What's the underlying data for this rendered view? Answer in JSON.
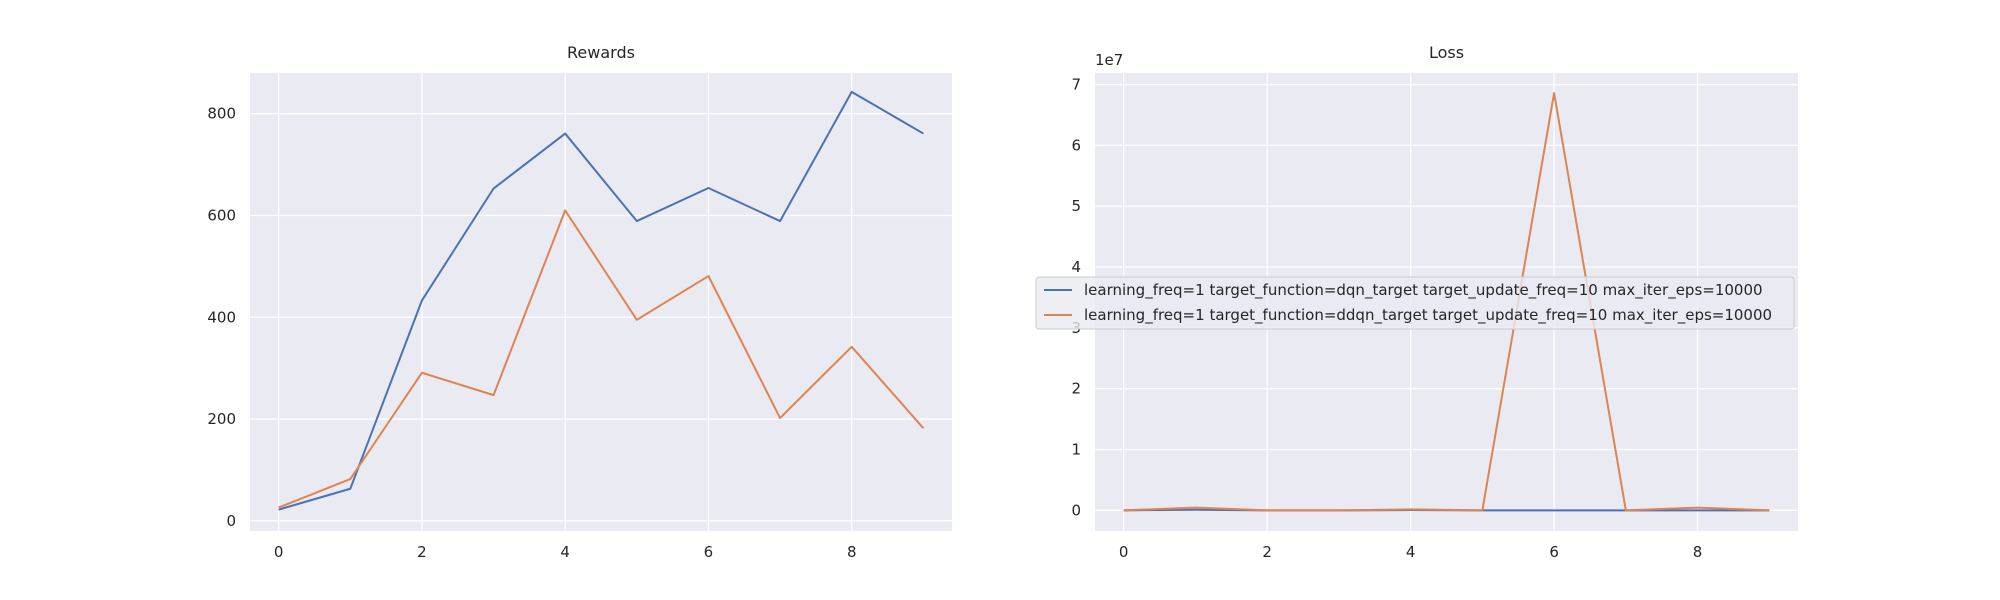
{
  "chart_data": [
    {
      "type": "line",
      "title": "Rewards",
      "xlabel": "",
      "ylabel": "",
      "x": [
        0,
        1,
        2,
        3,
        4,
        5,
        6,
        7,
        8,
        9
      ],
      "xlim": [
        -0.4,
        9.4
      ],
      "ylim": [
        -20,
        880
      ],
      "xticks": [
        0,
        2,
        4,
        6,
        8
      ],
      "yticks": [
        0,
        200,
        400,
        600,
        800
      ],
      "ytick_labels": [
        "0",
        "200",
        "400",
        "600",
        "800"
      ],
      "grid": true,
      "series": [
        {
          "color": "#4c72b0",
          "values": [
            22,
            63,
            433,
            653,
            761,
            589,
            654,
            589,
            843,
            761
          ]
        },
        {
          "color": "#dd8452",
          "values": [
            26,
            82,
            291,
            247,
            610,
            395,
            481,
            202,
            342,
            182
          ]
        }
      ]
    },
    {
      "type": "line",
      "title": "Loss",
      "xlabel": "",
      "ylabel": "",
      "offset_label": "1e7",
      "x": [
        0,
        1,
        2,
        3,
        4,
        5,
        6,
        7,
        8,
        9
      ],
      "xlim": [
        -0.4,
        9.4
      ],
      "ylim": [
        -3400000,
        71900000
      ],
      "xticks": [
        0,
        2,
        4,
        6,
        8
      ],
      "yticks": [
        0,
        10000000,
        20000000,
        30000000,
        40000000,
        50000000,
        60000000,
        70000000
      ],
      "ytick_labels": [
        "0",
        "1",
        "2",
        "3",
        "4",
        "5",
        "6",
        "7"
      ],
      "grid": true,
      "legend_position": "center",
      "legend": [
        "learning_freq=1 target_function=dqn_target target_update_freq=10 max_iter_eps=10000",
        "learning_freq=1 target_function=ddqn_target target_update_freq=10 max_iter_eps=10000"
      ],
      "series": [
        {
          "color": "#4c72b0",
          "values": [
            0,
            100000,
            0,
            0,
            50000,
            0,
            0,
            0,
            0,
            0
          ]
        },
        {
          "color": "#dd8452",
          "values": [
            0,
            450000,
            0,
            0,
            150000,
            0,
            68600000,
            0,
            450000,
            0
          ]
        }
      ]
    }
  ]
}
